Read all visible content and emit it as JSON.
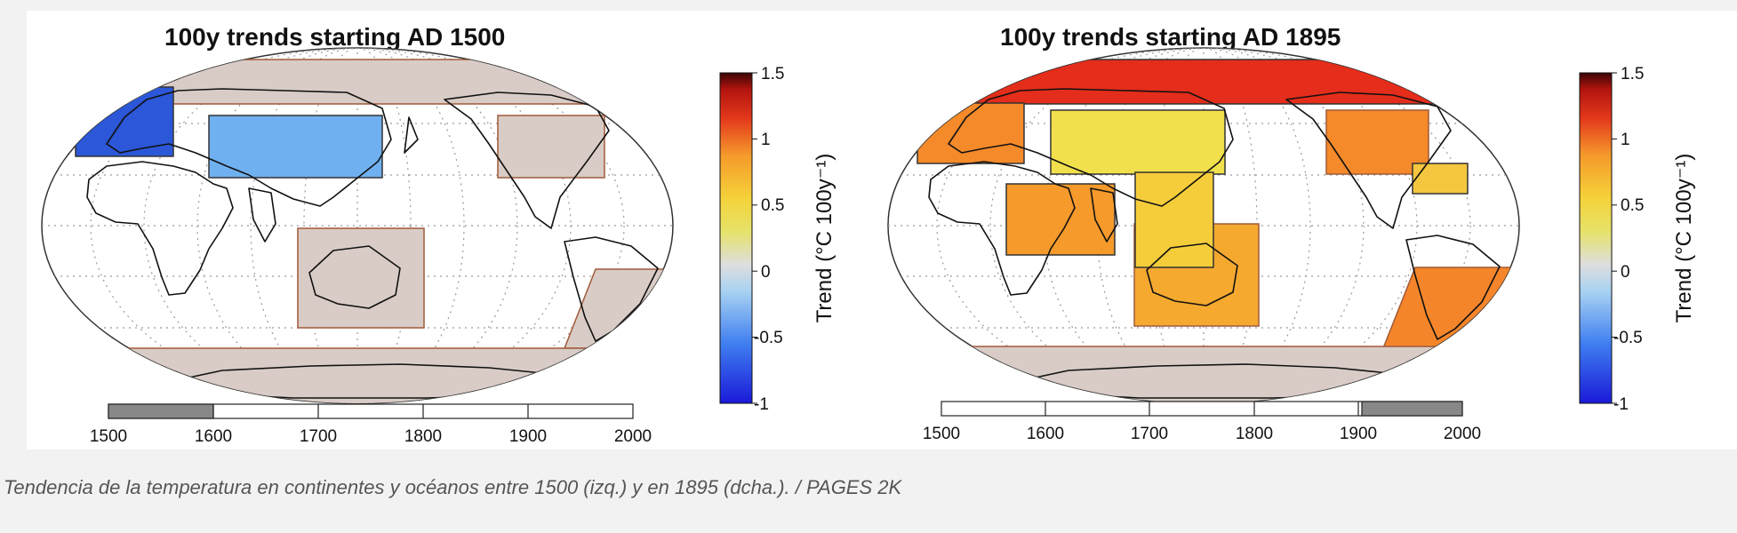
{
  "caption": "Tendencia de la temperatura en continentes y océanos entre 1500 (izq.) y en 1895 (dcha.). / PAGES 2K",
  "colorbar": {
    "title": "Trend (°C 100y⁻¹)",
    "ticks": [
      "1.5",
      "1",
      "0.5",
      "0",
      "-0.5",
      "-1"
    ],
    "tick_values": [
      1.5,
      1,
      0.5,
      0,
      -0.5,
      -1
    ],
    "range": [
      -1,
      1.5
    ]
  },
  "timeline": {
    "ticks": [
      "1500",
      "1600",
      "1700",
      "1800",
      "1900",
      "2000"
    ],
    "tick_values": [
      1500,
      1600,
      1700,
      1800,
      1900,
      2000
    ],
    "range": [
      1500,
      2000
    ]
  },
  "panels": [
    {
      "title": "100y trends starting AD 1500",
      "window_start": 1500,
      "window_end": 1600,
      "regions": [
        {
          "name": "Arctic",
          "trend": null,
          "color": "#d9ccc6"
        },
        {
          "name": "Europe",
          "trend": -0.85,
          "color": "#2b57d8"
        },
        {
          "name": "Asia",
          "trend": -0.45,
          "color": "#6fb1f0"
        },
        {
          "name": "North America",
          "trend": null,
          "color": "#d9ccc6"
        },
        {
          "name": "Australasia",
          "trend": null,
          "color": "#d9ccc6"
        },
        {
          "name": "South America",
          "trend": null,
          "color": "#d9ccc6"
        },
        {
          "name": "Antarctica",
          "trend": null,
          "color": "#d9ccc6"
        }
      ]
    },
    {
      "title": "100y trends starting AD 1895",
      "window_start": 1895,
      "window_end": 1995,
      "regions": [
        {
          "name": "Arctic",
          "trend": 1.3,
          "color": "#e42d1a"
        },
        {
          "name": "Europe",
          "trend": 0.85,
          "color": "#f58a2a"
        },
        {
          "name": "Asia",
          "trend": 0.45,
          "color": "#f1e04c"
        },
        {
          "name": "North America",
          "trend": 0.85,
          "color": "#f58a2a"
        },
        {
          "name": "Caribbean",
          "trend": 0.6,
          "color": "#f5c640"
        },
        {
          "name": "Indian Ocean",
          "trend": 0.8,
          "color": "#f59a2b"
        },
        {
          "name": "Indo-Pacific",
          "trend": 0.55,
          "color": "#f5cd3a"
        },
        {
          "name": "Australasia",
          "trend": 0.7,
          "color": "#f5a92f"
        },
        {
          "name": "South America",
          "trend": 0.9,
          "color": "#f5852a"
        },
        {
          "name": "Antarctica",
          "trend": null,
          "color": "#d9ccc6"
        }
      ]
    }
  ]
}
